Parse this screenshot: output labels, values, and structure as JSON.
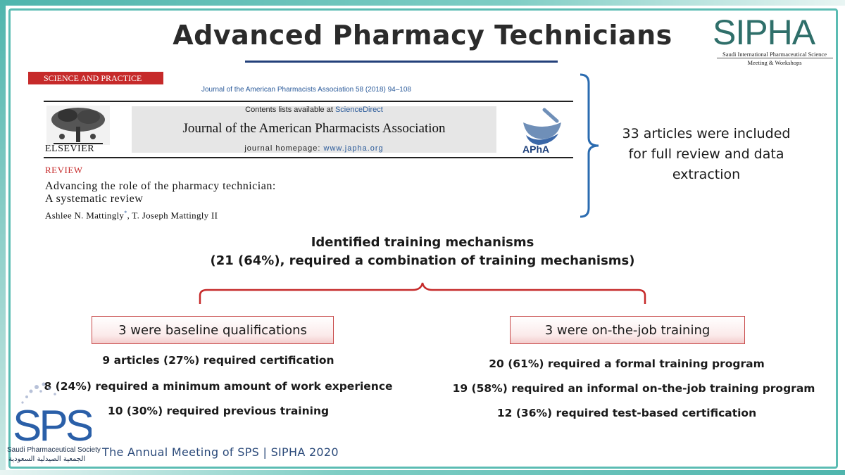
{
  "title": "Advanced Pharmacy Technicians",
  "sipha_logo": {
    "word": "SIPHA",
    "line1": "Saudi International Pharmaceutical Science",
    "line2": "Meeting & Workshops"
  },
  "journal": {
    "ribbon": "SCIENCE AND PRACTICE",
    "citation": "Journal of the American Pharmacists Association 58 (2018) 94–108",
    "contents_prefix": "Contents lists available at ",
    "contents_link": "ScienceDirect",
    "name": "Journal of the American Pharmacists Association",
    "homepage_prefix": "journal homepage: ",
    "homepage_url": "www.japha.org",
    "publisher": "ELSEVIER",
    "apha": "APhA",
    "review_tag": "REVIEW",
    "article_title_line1": "Advancing the role of the pharmacy technician:",
    "article_title_line2": "A systematic review",
    "author1": "Ashlee N. Mattingly",
    "author_mark": "*",
    "author2": ", T. Joseph Mattingly II"
  },
  "summary": {
    "line1": "33 articles were included",
    "line2": "for full review and data",
    "line3": "extraction"
  },
  "mechanisms": {
    "heading1": "Identified training mechanisms",
    "heading2": "(21 (64%), required a combination of training mechanisms)"
  },
  "left_group": {
    "label": "3 were baseline qualifications",
    "items": [
      "9 articles (27%) required certification",
      "8 (24%) required a minimum amount of work experience",
      "10 (30%) required previous training"
    ]
  },
  "right_group": {
    "label": "3 were on-the-job training",
    "items": [
      "20 (61%) required a formal training program",
      "19 (58%) required an informal on-the-job training program",
      "12 (36%) required test-based certification"
    ]
  },
  "sps_logo": {
    "word": "SPS",
    "caption_en": "Saudi Pharmaceutical Society",
    "caption_ar": "الجمعية الصيدلية السعودية"
  },
  "footer": "The Annual Meeting of SPS | SIPHA 2020",
  "colors": {
    "teal": "#5bbcb3",
    "title_underline": "#23407a",
    "bracket_blue": "#2a6bb0",
    "brace_red": "#c62a2a",
    "sps_blue": "#2a5fa8"
  }
}
